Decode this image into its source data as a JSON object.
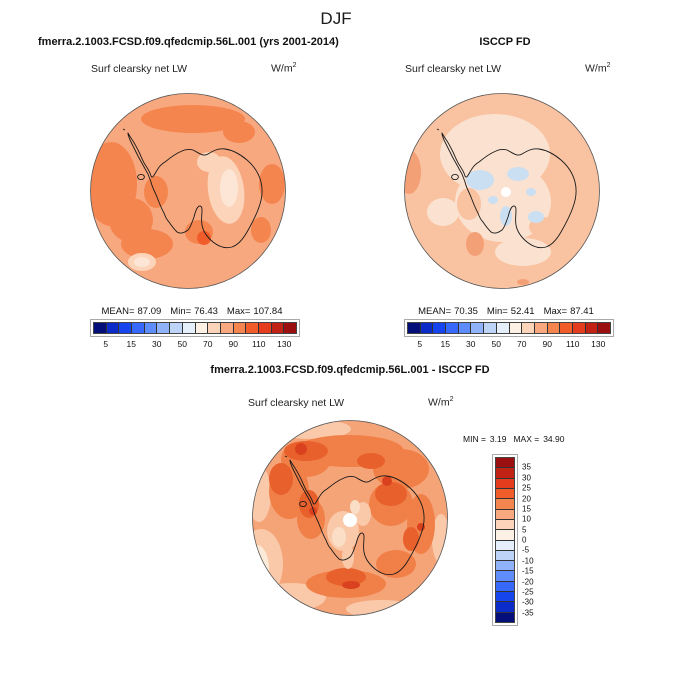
{
  "title": "DJF",
  "model": {
    "case_title": "fmerra.2.1003.FCSD.f09.qfedcmip.56L.001 (yrs 2001-2014)",
    "field": "Surf clearsky net LW",
    "units_base": "W/m",
    "units_exp": "2",
    "stats": {
      "mean_label": "MEAN=",
      "mean": "87.09",
      "min_label": "Min=",
      "min": "76.43",
      "max_label": "Max=",
      "max": "107.84"
    }
  },
  "obs": {
    "case_title": "ISCCP FD",
    "field": "Surf clearsky net LW",
    "units_base": "W/m",
    "units_exp": "2",
    "stats": {
      "mean_label": "MEAN=",
      "mean": "70.35",
      "min_label": "Min=",
      "min": "52.41",
      "max_label": "Max=",
      "max": "87.41"
    }
  },
  "diff": {
    "case_title": "fmerra.2.1003.FCSD.f09.qfedcmip.56L.001 - ISCCP FD",
    "field": "Surf clearsky net LW",
    "units_base": "W/m",
    "units_exp": "2",
    "stats": {
      "min_label": "MIN =",
      "min": "3.19",
      "max_label": "MAX =",
      "max": "34.90"
    }
  },
  "colorbar_abs": {
    "colors": [
      "#050f7a",
      "#0b2cc8",
      "#1645ee",
      "#3668fa",
      "#5e8cfa",
      "#8fb2f8",
      "#bed3f8",
      "#e5eefb",
      "#fdf1e5",
      "#fbd4ba",
      "#f8a87e",
      "#f5854f",
      "#f15d2a",
      "#e53c1e",
      "#c22214",
      "#9c0f10"
    ],
    "ticks": [
      "5",
      "15",
      "30",
      "50",
      "70",
      "90",
      "110",
      "130"
    ],
    "tick_boundaries": [
      1,
      3,
      5,
      7,
      9,
      11,
      13,
      15
    ]
  },
  "colorbar_diff": {
    "colors": [
      "#9c0f10",
      "#c22214",
      "#e53c1e",
      "#f15d2a",
      "#f5854f",
      "#f8a87e",
      "#fbd4ba",
      "#fdf1e5",
      "#e5eefb",
      "#bed3f8",
      "#8fb2f8",
      "#5e8cfa",
      "#3668fa",
      "#1645ee",
      "#0b2cc8",
      "#050f7a"
    ],
    "ticks": [
      "35",
      "30",
      "25",
      "20",
      "15",
      "10",
      "5",
      "0",
      "-5",
      "-10",
      "-15",
      "-20",
      "-25",
      "-30",
      "-35"
    ],
    "tick_boundaries": [
      1,
      2,
      3,
      4,
      5,
      6,
      7,
      8,
      9,
      10,
      11,
      12,
      13,
      14,
      15
    ]
  },
  "chart_data": [
    {
      "type": "heatmap",
      "subtype": "south-polar-contour-map",
      "region": "Antarctica (south polar view)",
      "season": "DJF",
      "title": "fmerra.2.1003.FCSD.f09.qfedcmip.56L.001 (yrs 2001-2014)",
      "variable": "Surf clearsky net LW",
      "units": "W/m^2",
      "stats": {
        "mean": 87.09,
        "min": 76.43,
        "max": 107.84
      },
      "colorbar_ticks": [
        5,
        15,
        30,
        50,
        70,
        90,
        110,
        130
      ],
      "colorbar_orientation": "horizontal-below",
      "value_pattern": "mostly 90-100 W/m^2 (salmon) over ocean, 100-110 (orange) patches west/southwest/top, 70-80 (light peach) over interior East Antarctica, light patch at bottom edge"
    },
    {
      "type": "heatmap",
      "subtype": "south-polar-contour-map",
      "region": "Antarctica (south polar view)",
      "season": "DJF",
      "title": "ISCCP FD",
      "variable": "Surf clearsky net LW",
      "units": "W/m^2",
      "stats": {
        "mean": 70.35,
        "min": 52.41,
        "max": 87.41
      },
      "colorbar_ticks": [
        5,
        15,
        30,
        50,
        70,
        90,
        110,
        130
      ],
      "colorbar_orientation": "horizontal-below",
      "value_pattern": "lighter overall (70-90), large very-light (60-70) interior, pale-blue (50-60) patches inside continent, white missing-data dot at pole"
    },
    {
      "type": "heatmap",
      "subtype": "south-polar-contour-map",
      "region": "Antarctica (south polar view)",
      "season": "DJF",
      "title": "fmerra.2.1003.FCSD.f09.qfedcmip.56L.001 - ISCCP FD",
      "variable": "Surf clearsky net LW",
      "units": "W/m^2",
      "stats": {
        "min": 3.19,
        "max": 34.9
      },
      "colorbar_ticks": [
        35,
        30,
        25,
        20,
        15,
        10,
        5,
        0,
        -5,
        -10,
        -15,
        -20,
        -25,
        -30,
        -35
      ],
      "colorbar_orientation": "vertical-right",
      "value_pattern": "all-positive differences: 5-15 near pole and lower-left edge, 15-25 over most of disc, 25-35 deep-orange patches along coast, top-left and bottom-center; white dot at pole"
    }
  ]
}
